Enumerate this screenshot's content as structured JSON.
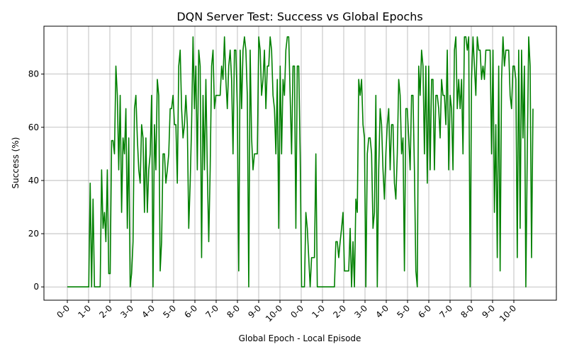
{
  "chart_data": {
    "type": "line",
    "title": "DQN Server Test: Success vs Global Epochs",
    "xlabel": "Global Epoch - Local Episode",
    "ylabel": "Success (%)",
    "x_tick_labels": [
      "0-0",
      "1-0",
      "2-0",
      "3-0",
      "4-0",
      "5-0",
      "6-0",
      "7-0",
      "8-0",
      "9-0",
      "10-0",
      "0-0",
      "1-0",
      "2-0",
      "3-0",
      "4-0",
      "5-0",
      "6-0",
      "7-0",
      "8-0",
      "9-0",
      "10-0"
    ],
    "y_ticks": [
      0,
      20,
      40,
      60,
      80
    ],
    "ylim": [
      -5,
      98
    ],
    "grid": true,
    "series_color": "#008000",
    "series": [
      {
        "values": [
          0,
          0,
          0,
          0,
          0,
          0,
          0,
          0,
          0,
          0,
          0,
          0,
          0,
          0,
          0,
          0,
          39,
          0,
          33,
          0,
          0,
          0,
          0,
          0,
          44,
          22,
          28,
          17,
          44,
          5,
          5,
          55,
          55,
          50,
          83,
          72,
          44,
          72,
          28,
          56,
          50,
          67,
          22,
          56,
          0,
          5,
          17,
          67,
          72,
          56,
          44,
          39,
          61,
          56,
          28,
          56,
          28,
          44,
          50,
          72,
          0,
          61,
          44,
          78,
          72,
          6,
          17,
          50,
          50,
          39,
          44,
          50,
          67,
          67,
          72,
          61,
          61,
          39,
          83,
          89,
          67,
          56,
          61,
          72,
          61,
          22,
          39,
          61,
          94,
          67,
          83,
          44,
          89,
          83,
          11,
          72,
          44,
          78,
          44,
          17,
          44,
          83,
          89,
          67,
          72,
          72,
          72,
          72,
          83,
          78,
          94,
          78,
          67,
          83,
          89,
          78,
          50,
          89,
          89,
          67,
          6,
          89,
          67,
          89,
          94,
          89,
          72,
          0,
          89,
          56,
          44,
          50,
          50,
          50,
          94,
          89,
          72,
          78,
          89,
          67,
          83,
          83,
          94,
          89,
          72,
          67,
          50,
          78,
          22,
          83,
          50,
          78,
          72,
          89,
          94,
          94,
          72,
          50,
          83,
          83,
          22,
          83,
          83,
          50,
          0,
          0,
          0,
          28,
          22,
          11,
          0,
          11,
          11,
          11,
          50,
          0,
          0,
          0,
          0,
          0,
          0,
          0,
          0,
          0,
          0,
          0,
          0,
          0,
          17,
          17,
          11,
          17,
          22,
          28,
          6,
          6,
          6,
          6,
          22,
          0,
          17,
          0,
          33,
          28,
          78,
          72,
          78,
          61,
          56,
          0,
          50,
          56,
          56,
          50,
          22,
          28,
          72,
          0,
          44,
          67,
          61,
          44,
          33,
          50,
          61,
          67,
          44,
          61,
          61,
          39,
          33,
          50,
          78,
          72,
          50,
          56,
          6,
          67,
          67,
          56,
          44,
          72,
          72,
          44,
          6,
          0,
          83,
          72,
          89,
          83,
          50,
          83,
          39,
          83,
          44,
          78,
          78,
          44,
          72,
          72,
          67,
          56,
          78,
          72,
          72,
          61,
          89,
          44,
          72,
          67,
          44,
          89,
          94,
          67,
          78,
          67,
          78,
          50,
          94,
          94,
          89,
          94,
          0,
          78,
          94,
          83,
          72,
          94,
          89,
          89,
          78,
          83,
          78,
          89,
          89,
          89,
          89,
          50,
          89,
          28,
          61,
          11,
          83,
          6,
          78,
          94,
          83,
          89,
          89,
          89,
          72,
          67,
          83,
          83,
          78,
          11,
          89,
          22,
          89,
          56,
          83,
          0,
          50,
          94,
          83,
          11,
          67
        ]
      }
    ]
  }
}
